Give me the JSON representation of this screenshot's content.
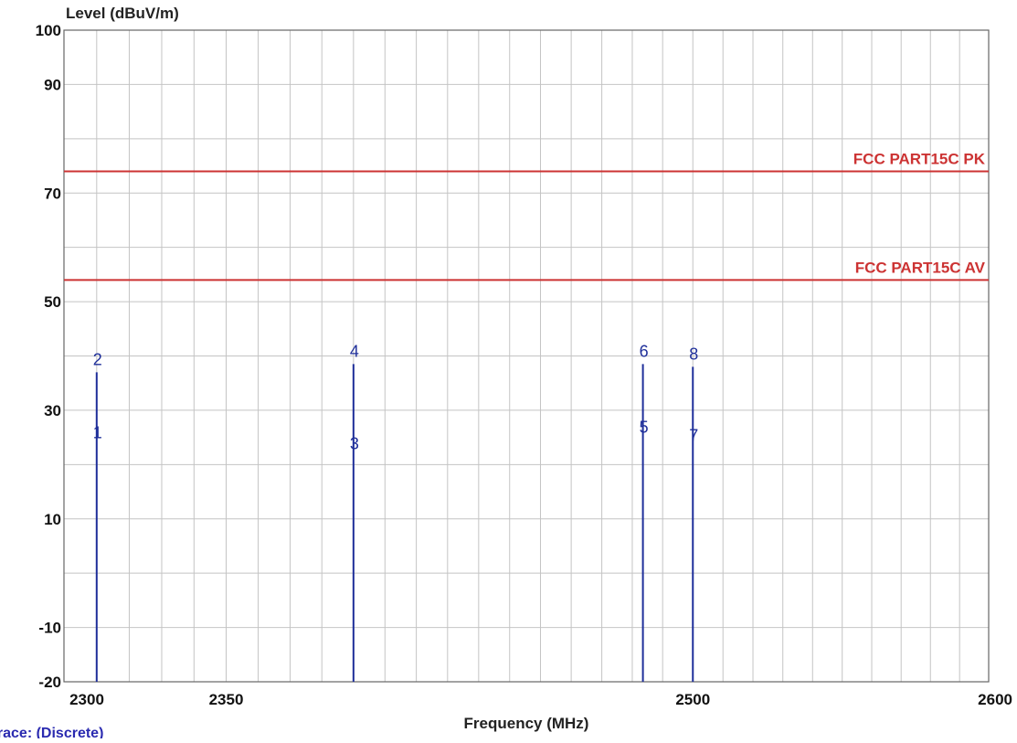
{
  "chart_data": {
    "type": "line",
    "ylabel": "Level (dBuV/m)",
    "xlabel": "Frequency (MHz)",
    "xscale": "log",
    "xlim": [
      2300,
      2600
    ],
    "ylim": [
      -20,
      100
    ],
    "x_ticks": [
      "2300",
      "2350",
      "2500",
      "2600"
    ],
    "y_ticks": [
      "100",
      "90",
      "70",
      "50",
      "30",
      "10",
      "-10",
      "-20"
    ],
    "grid": true,
    "limit_lines": [
      {
        "name": "FCC PART15C  PK",
        "value": 74,
        "color": "#cc3333"
      },
      {
        "name": "FCC PART15C  AV",
        "value": 54,
        "color": "#cc3333"
      }
    ],
    "emissions": [
      {
        "frequency": 2310,
        "peak": 37.0,
        "average": 26.0,
        "peak_marker": "2",
        "average_marker": "1"
      },
      {
        "frequency": 2390,
        "peak": 38.5,
        "average": 24.0,
        "peak_marker": "4",
        "average_marker": "3"
      },
      {
        "frequency": 2483.5,
        "peak": 38.5,
        "average": 27.0,
        "peak_marker": "6",
        "average_marker": "5"
      },
      {
        "frequency": 2500,
        "peak": 38.0,
        "average": 25.5,
        "peak_marker": "8",
        "average_marker": "7"
      }
    ],
    "emission_color": "#1f2f9a",
    "trace_label": "Trace:",
    "trace_value": "(Discrete)",
    "trace_label_color": "#2a2ab0"
  }
}
